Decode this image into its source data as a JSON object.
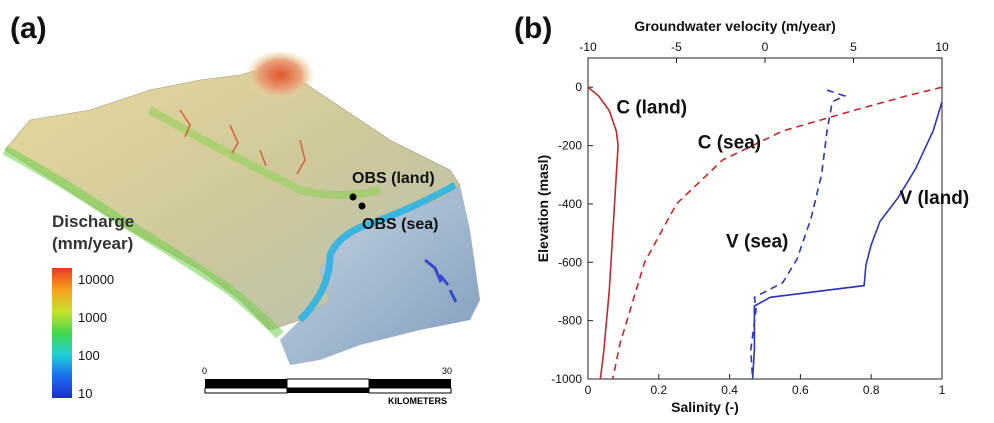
{
  "panels": {
    "a": "(a)",
    "b": "(b)"
  },
  "map": {
    "legend_title_line1": "Discharge",
    "legend_title_line2": "(mm/year)",
    "legend_ticks": [
      "10000",
      "1000",
      "100",
      "10"
    ],
    "legend_colors": [
      "#e53a1f",
      "#f7a01c",
      "#c9e22a",
      "#41d84a",
      "#1fd0d8",
      "#1c6cf0",
      "#1a2fd0"
    ],
    "obs_land": "OBS (land)",
    "obs_sea": "OBS (sea)",
    "scale_start": "0",
    "scale_end": "30",
    "scale_units": "KILOMETERS"
  },
  "chart_data": {
    "type": "line",
    "title": "",
    "xlabel_bottom": "Salinity (-)",
    "xlabel_top": "Groundwater velocity (m/year)",
    "ylabel": "Elevation (masl)",
    "xlim_bottom": [
      0,
      1
    ],
    "xlim_top": [
      -10,
      10
    ],
    "ylim": [
      -1000,
      100
    ],
    "xticks_bottom": [
      "0",
      "0.2",
      "0.4",
      "0.6",
      "0.8",
      "1"
    ],
    "xticks_top": [
      "-10",
      "-5",
      "0",
      "5",
      "10"
    ],
    "yticks": [
      "0",
      "-200",
      "-400",
      "-600",
      "-800",
      "-1000"
    ],
    "series": [
      {
        "name": "C (land)",
        "axis": "bottom",
        "color": "#c0282d",
        "dash": false,
        "x": [
          0.0,
          0.03,
          0.06,
          0.08,
          0.085,
          0.08,
          0.07,
          0.06,
          0.045,
          0.035
        ],
        "y": [
          0,
          -30,
          -80,
          -150,
          -200,
          -300,
          -500,
          -700,
          -900,
          -1000
        ]
      },
      {
        "name": "C (sea)",
        "axis": "bottom",
        "color": "#c0282d",
        "dash": true,
        "x": [
          1.0,
          0.9,
          0.75,
          0.55,
          0.38,
          0.25,
          0.16,
          0.12,
          0.09,
          0.07
        ],
        "y": [
          0,
          -30,
          -80,
          -150,
          -250,
          -400,
          -600,
          -760,
          -880,
          -1000
        ]
      },
      {
        "name": "V (land)",
        "axis": "top",
        "color": "#2b35b8",
        "dash": false,
        "x": [
          10.0,
          9.5,
          8.5,
          7.5,
          6.5,
          6.0,
          5.7,
          5.6,
          0.3,
          -0.6,
          -0.6,
          -0.7
        ],
        "y": [
          -50,
          -150,
          -280,
          -380,
          -460,
          -540,
          -610,
          -680,
          -720,
          -750,
          -900,
          -1000
        ]
      },
      {
        "name": "V (sea)",
        "axis": "top",
        "color": "#2b35b8",
        "dash": true,
        "x": [
          3.5,
          4.5,
          3.8,
          3.5,
          3.2,
          2.6,
          1.8,
          1.0,
          -0.6,
          -0.5,
          -0.8,
          -0.7
        ],
        "y": [
          -10,
          -30,
          -50,
          -150,
          -300,
          -450,
          -590,
          -670,
          -720,
          -760,
          -900,
          -1000
        ]
      }
    ],
    "annotations": [
      "C (land)",
      "C (sea)",
      "V (land)",
      "V (sea)"
    ]
  }
}
